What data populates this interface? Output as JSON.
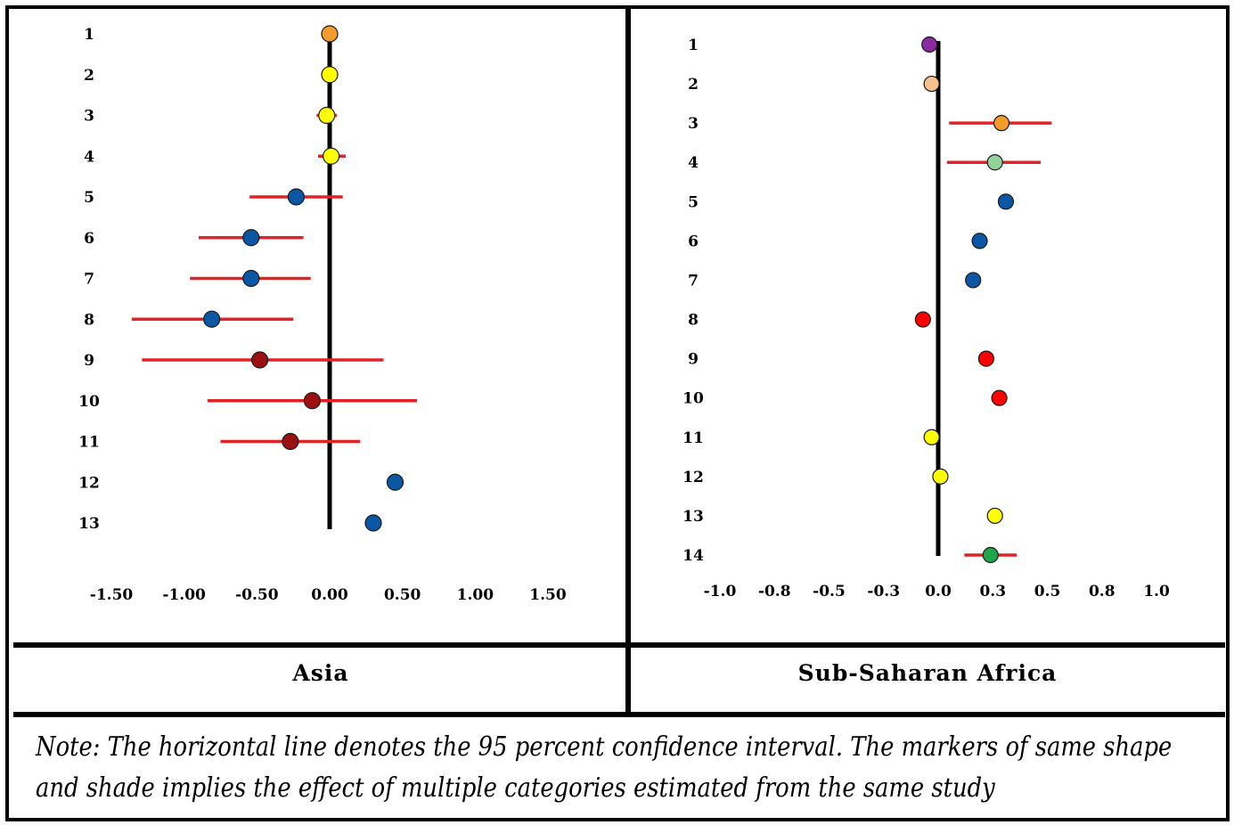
{
  "panels": {
    "left_title": "Asia",
    "right_title": "Sub-Saharan Africa"
  },
  "note": {
    "line1": "Note: The horizontal line denotes the 95 percent confidence interval. The markers of same shape",
    "line2": "and shade implies the effect of multiple categories estimated from the same study"
  },
  "colors": {
    "ci_line": "#e32227",
    "zero_line": "#000000",
    "border": "#000000"
  },
  "chart_data": [
    {
      "type": "scatter",
      "title": "Asia",
      "xlim": [
        -1.5,
        1.5
      ],
      "x_ticks": [
        "-1.50",
        "-1.00",
        "-0.50",
        "0.00",
        "0.50",
        "1.00",
        "1.50"
      ],
      "x_tick_values": [
        -1.5,
        -1.0,
        -0.5,
        0.0,
        0.5,
        1.0,
        1.5
      ],
      "categories": [
        "1",
        "2",
        "3",
        "4",
        "5",
        "6",
        "7",
        "8",
        "9",
        "10",
        "11",
        "12",
        "13"
      ],
      "points": [
        {
          "label": "1",
          "estimate": 0.0,
          "lo": null,
          "hi": null,
          "color": "#f39c2d"
        },
        {
          "label": "2",
          "estimate": 0.0,
          "lo": null,
          "hi": null,
          "color": "#ffff00"
        },
        {
          "label": "3",
          "estimate": -0.02,
          "lo": -0.09,
          "hi": 0.05,
          "color": "#ffff00"
        },
        {
          "label": "4",
          "estimate": 0.01,
          "lo": -0.08,
          "hi": 0.11,
          "color": "#ffff00"
        },
        {
          "label": "5",
          "estimate": -0.23,
          "lo": -0.55,
          "hi": 0.09,
          "color": "#0b57a4"
        },
        {
          "label": "6",
          "estimate": -0.54,
          "lo": -0.9,
          "hi": -0.18,
          "color": "#0b57a4"
        },
        {
          "label": "7",
          "estimate": -0.54,
          "lo": -0.96,
          "hi": -0.13,
          "color": "#0b57a4"
        },
        {
          "label": "8",
          "estimate": -0.81,
          "lo": -1.36,
          "hi": -0.25,
          "color": "#0b57a4"
        },
        {
          "label": "9",
          "estimate": -0.48,
          "lo": -1.29,
          "hi": 0.37,
          "color": "#9b1010"
        },
        {
          "label": "10",
          "estimate": -0.12,
          "lo": -0.84,
          "hi": 0.6,
          "color": "#9b1010"
        },
        {
          "label": "11",
          "estimate": -0.27,
          "lo": -0.75,
          "hi": 0.21,
          "color": "#9b1010"
        },
        {
          "label": "12",
          "estimate": 0.45,
          "lo": null,
          "hi": null,
          "color": "#0b57a4"
        },
        {
          "label": "13",
          "estimate": 0.3,
          "lo": null,
          "hi": null,
          "color": "#0b57a4"
        }
      ]
    },
    {
      "type": "scatter",
      "title": "Sub-Saharan Africa",
      "xlim": [
        -1.0,
        1.0
      ],
      "x_ticks": [
        "-1.0",
        "-0.8",
        "-0.5",
        "-0.3",
        "0.0",
        "0.3",
        "0.5",
        "0.8",
        "1.0"
      ],
      "x_tick_values": [
        -1.0,
        -0.75,
        -0.5,
        -0.25,
        0.0,
        0.25,
        0.5,
        0.75,
        1.0
      ],
      "categories": [
        "1",
        "2",
        "3",
        "4",
        "5",
        "6",
        "7",
        "8",
        "9",
        "10",
        "11",
        "12",
        "13",
        "14"
      ],
      "points": [
        {
          "label": "1",
          "estimate": -0.04,
          "lo": null,
          "hi": null,
          "color": "#8b2a9e"
        },
        {
          "label": "2",
          "estimate": -0.03,
          "lo": null,
          "hi": null,
          "color": "#f7c08e"
        },
        {
          "label": "3",
          "estimate": 0.29,
          "lo": 0.05,
          "hi": 0.52,
          "color": "#f39c2d"
        },
        {
          "label": "4",
          "estimate": 0.26,
          "lo": 0.04,
          "hi": 0.47,
          "color": "#93d29a"
        },
        {
          "label": "5",
          "estimate": 0.31,
          "lo": null,
          "hi": null,
          "color": "#0b57a4"
        },
        {
          "label": "6",
          "estimate": 0.19,
          "lo": null,
          "hi": null,
          "color": "#0b57a4"
        },
        {
          "label": "7",
          "estimate": 0.16,
          "lo": null,
          "hi": null,
          "color": "#0b57a4"
        },
        {
          "label": "8",
          "estimate": -0.07,
          "lo": null,
          "hi": null,
          "color": "#ff0000"
        },
        {
          "label": "9",
          "estimate": 0.22,
          "lo": null,
          "hi": null,
          "color": "#ff0000"
        },
        {
          "label": "10",
          "estimate": 0.28,
          "lo": null,
          "hi": null,
          "color": "#ff0000"
        },
        {
          "label": "11",
          "estimate": -0.03,
          "lo": null,
          "hi": null,
          "color": "#ffff00"
        },
        {
          "label": "12",
          "estimate": 0.01,
          "lo": null,
          "hi": null,
          "color": "#ffff00"
        },
        {
          "label": "13",
          "estimate": 0.26,
          "lo": null,
          "hi": null,
          "color": "#ffff00"
        },
        {
          "label": "14",
          "estimate": 0.24,
          "lo": 0.12,
          "hi": 0.36,
          "color": "#1fa64a"
        }
      ]
    }
  ]
}
